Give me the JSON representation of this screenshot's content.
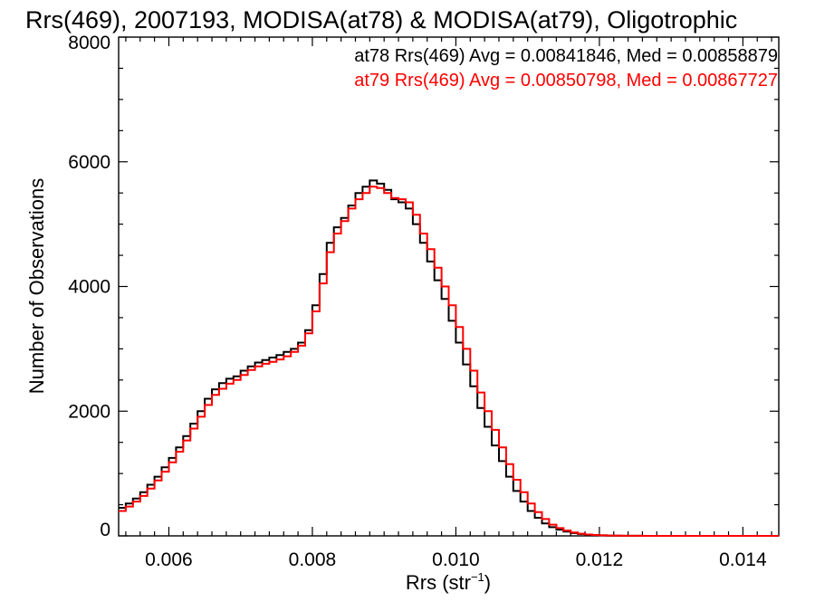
{
  "chart_data": {
    "type": "line",
    "title": "Rrs(469), 2007193, MODISA(at78) & MODISA(at79), Oligotrophic",
    "xlabel_main": "Rrs (str",
    "xlabel_sup": "−1",
    "xlabel_close": ")",
    "ylabel": "Number of Observations",
    "xlim": [
      0.0053,
      0.0145
    ],
    "ylim": [
      0,
      8000
    ],
    "x_ticks": [
      {
        "value": 0.006,
        "label": "0.006"
      },
      {
        "value": 0.008,
        "label": "0.008"
      },
      {
        "value": 0.01,
        "label": "0.010"
      },
      {
        "value": 0.012,
        "label": "0.012"
      },
      {
        "value": 0.014,
        "label": "0.014"
      }
    ],
    "y_ticks": [
      {
        "value": 0,
        "label": "0"
      },
      {
        "value": 2000,
        "label": "2000"
      },
      {
        "value": 4000,
        "label": "4000"
      },
      {
        "value": 6000,
        "label": "6000"
      },
      {
        "value": 8000,
        "label": "8000"
      }
    ],
    "grid": false,
    "legend_position": "top-right",
    "series": [
      {
        "name": "at78",
        "color": "#000000",
        "stats_text": "at78 Rrs(469) Avg = 0.00841846, Med = 0.00858879",
        "x": [
          0.0053,
          0.0054,
          0.0055,
          0.0056,
          0.0057,
          0.0058,
          0.0059,
          0.006,
          0.0061,
          0.0062,
          0.0063,
          0.0064,
          0.0065,
          0.0066,
          0.0067,
          0.0068,
          0.0069,
          0.007,
          0.0071,
          0.0072,
          0.0073,
          0.0074,
          0.0075,
          0.0076,
          0.0077,
          0.0078,
          0.0079,
          0.008,
          0.0081,
          0.0082,
          0.0083,
          0.0084,
          0.0085,
          0.0086,
          0.0087,
          0.0088,
          0.0089,
          0.009,
          0.0091,
          0.0092,
          0.0093,
          0.0094,
          0.0095,
          0.0096,
          0.0097,
          0.0098,
          0.0099,
          0.01,
          0.0101,
          0.0102,
          0.0103,
          0.0104,
          0.0105,
          0.0106,
          0.0107,
          0.0108,
          0.0109,
          0.011,
          0.0111,
          0.0112,
          0.0113,
          0.0114,
          0.0115,
          0.0116,
          0.0117,
          0.0118,
          0.0119,
          0.012,
          0.0121,
          0.0122,
          0.0123,
          0.0124,
          0.0125,
          0.0126,
          0.0127,
          0.0128,
          0.013,
          0.0132,
          0.0134,
          0.0136,
          0.0138,
          0.014,
          0.0142,
          0.0145
        ],
        "y": [
          450,
          520,
          600,
          700,
          820,
          950,
          1100,
          1250,
          1420,
          1600,
          1800,
          2000,
          2200,
          2350,
          2450,
          2520,
          2560,
          2650,
          2720,
          2780,
          2820,
          2860,
          2900,
          2950,
          3000,
          3100,
          3300,
          3700,
          4200,
          4700,
          4950,
          5100,
          5300,
          5500,
          5600,
          5700,
          5650,
          5550,
          5400,
          5350,
          5250,
          5000,
          4700,
          4400,
          4100,
          3800,
          3450,
          3100,
          2750,
          2400,
          2050,
          1750,
          1450,
          1200,
          950,
          720,
          550,
          400,
          290,
          200,
          140,
          100,
          70,
          45,
          30,
          20,
          12,
          8,
          5,
          3,
          2,
          1,
          1,
          0,
          0,
          0,
          0,
          0,
          0,
          0,
          0,
          0,
          0,
          0
        ]
      },
      {
        "name": "at79",
        "color": "#ff0000",
        "stats_text": "at79 Rrs(469) Avg = 0.00850798, Med = 0.00867727",
        "x": [
          0.0053,
          0.0054,
          0.0055,
          0.0056,
          0.0057,
          0.0058,
          0.0059,
          0.006,
          0.0061,
          0.0062,
          0.0063,
          0.0064,
          0.0065,
          0.0066,
          0.0067,
          0.0068,
          0.0069,
          0.007,
          0.0071,
          0.0072,
          0.0073,
          0.0074,
          0.0075,
          0.0076,
          0.0077,
          0.0078,
          0.0079,
          0.008,
          0.0081,
          0.0082,
          0.0083,
          0.0084,
          0.0085,
          0.0086,
          0.0087,
          0.0088,
          0.0089,
          0.009,
          0.0091,
          0.0092,
          0.0093,
          0.0094,
          0.0095,
          0.0096,
          0.0097,
          0.0098,
          0.0099,
          0.01,
          0.0101,
          0.0102,
          0.0103,
          0.0104,
          0.0105,
          0.0106,
          0.0107,
          0.0108,
          0.0109,
          0.011,
          0.0111,
          0.0112,
          0.0113,
          0.0114,
          0.0115,
          0.0116,
          0.0117,
          0.0118,
          0.0119,
          0.012,
          0.0121,
          0.0122,
          0.0123,
          0.0124,
          0.0125,
          0.0126,
          0.0127,
          0.0128,
          0.013,
          0.0132,
          0.0134,
          0.0136,
          0.0138,
          0.014,
          0.0142,
          0.0145
        ],
        "y": [
          400,
          470,
          550,
          640,
          760,
          890,
          1030,
          1180,
          1350,
          1530,
          1720,
          1910,
          2100,
          2260,
          2360,
          2440,
          2500,
          2580,
          2660,
          2720,
          2760,
          2790,
          2830,
          2880,
          2950,
          3050,
          3250,
          3600,
          4050,
          4550,
          4850,
          5050,
          5250,
          5400,
          5500,
          5600,
          5580,
          5500,
          5420,
          5400,
          5350,
          5150,
          4850,
          4600,
          4300,
          4000,
          3700,
          3350,
          3000,
          2650,
          2300,
          2000,
          1700,
          1420,
          1150,
          900,
          700,
          520,
          380,
          270,
          180,
          125,
          85,
          55,
          35,
          22,
          14,
          9,
          6,
          4,
          2,
          1,
          1,
          0,
          0,
          0,
          0,
          0,
          0,
          0,
          0,
          0,
          0,
          0
        ]
      }
    ]
  }
}
